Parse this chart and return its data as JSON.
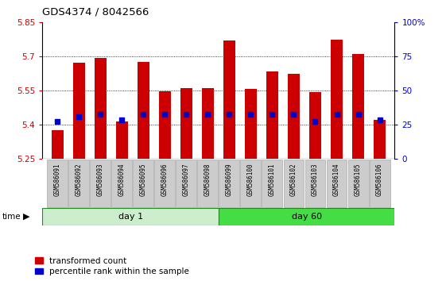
{
  "title": "GDS4374 / 8042566",
  "samples": [
    "GSM586091",
    "GSM586092",
    "GSM586093",
    "GSM586094",
    "GSM586095",
    "GSM586096",
    "GSM586097",
    "GSM586098",
    "GSM586099",
    "GSM586100",
    "GSM586101",
    "GSM586102",
    "GSM586103",
    "GSM586104",
    "GSM586105",
    "GSM586106"
  ],
  "group1_count": 8,
  "group2_count": 8,
  "group1_label": "day 1",
  "group2_label": "day 60",
  "bar_tops": [
    5.375,
    5.672,
    5.695,
    5.415,
    5.675,
    5.548,
    5.56,
    5.56,
    5.77,
    5.557,
    5.635,
    5.625,
    5.543,
    5.775,
    5.71,
    5.42
  ],
  "blue_y": [
    5.415,
    5.435,
    5.447,
    5.421,
    5.447,
    5.447,
    5.447,
    5.447,
    5.447,
    5.447,
    5.447,
    5.447,
    5.413,
    5.447,
    5.447,
    5.421
  ],
  "bar_bottom": 5.25,
  "y_min": 5.25,
  "y_max": 5.85,
  "y_ticks": [
    5.25,
    5.4,
    5.55,
    5.7,
    5.85
  ],
  "y_tick_labels": [
    "5.25",
    "5.4",
    "5.55",
    "5.7",
    "5.85"
  ],
  "y2_ticks": [
    0,
    25,
    50,
    75,
    100
  ],
  "y2_tick_labels": [
    "0",
    "25",
    "50",
    "75",
    "100%"
  ],
  "bar_color": "#cc0000",
  "blue_color": "#0000cc",
  "group1_bg": "#cceecc",
  "group2_bg": "#44dd44",
  "grid_color": "#000000",
  "bar_width": 0.55,
  "label_box_color": "#cccccc",
  "label_box_edge": "#aaaaaa",
  "legend_red_label": "transformed count",
  "legend_blue_label": "percentile rank within the sample",
  "xlabel_color": "#cc0000",
  "ylabel2_color": "#0000cc"
}
